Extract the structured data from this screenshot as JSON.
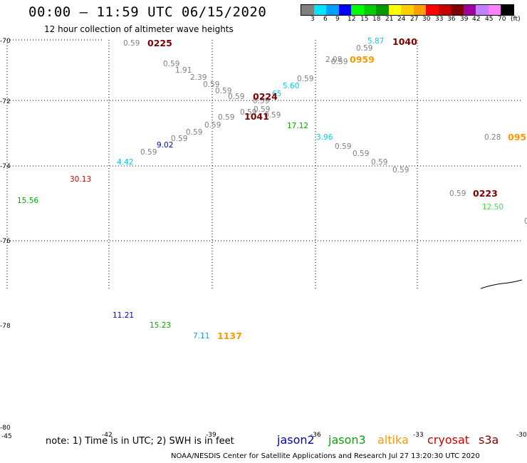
{
  "title": "00:00 – 11:59 UTC 06/15/2020",
  "subtitle": "12 hour collection of altimeter wave heights",
  "legend": {
    "unit": "(ft)",
    "colors": [
      "#808080",
      "#00e5ff",
      "#00a0ff",
      "#0000ff",
      "#00ff00",
      "#00cc00",
      "#009900",
      "#ffff00",
      "#ffd000",
      "#ffa000",
      "#ff0000",
      "#c80000",
      "#800000",
      "#a000a0",
      "#c080ff",
      "#ff80ff",
      "#000000"
    ],
    "labels": [
      "3",
      "6",
      "9",
      "12",
      "15",
      "18",
      "21",
      "24",
      "27",
      "30",
      "33",
      "36",
      "39",
      "42",
      "45",
      "70"
    ]
  },
  "latitudes": [
    "-70",
    "-72",
    "-74",
    "-76",
    "-78",
    "-80"
  ],
  "longitudes": [
    "-45",
    "-42",
    "-39",
    "-36",
    "-33",
    "-30"
  ],
  "values": [
    {
      "text": "0.59",
      "color": "#808080"
    },
    {
      "text": "0.59",
      "color": "#808080"
    },
    {
      "text": "1.91",
      "color": "#808080"
    },
    {
      "text": "2.39",
      "color": "#808080"
    },
    {
      "text": "0.59",
      "color": "#808080"
    },
    {
      "text": "0.59",
      "color": "#808080"
    },
    {
      "text": "0.59",
      "color": "#808080"
    },
    {
      "text": "0.59",
      "color": "#808080"
    },
    {
      "text": "0.59",
      "color": "#808080"
    },
    {
      "text": "0.59",
      "color": "#808080"
    },
    {
      "text": "0.59",
      "color": "#808080"
    },
    {
      "text": "0.59",
      "color": "#808080"
    },
    {
      "text": "0.59",
      "color": "#808080"
    },
    {
      "text": "0.59",
      "color": "#808080"
    },
    {
      "text": "0.59",
      "color": "#808080"
    },
    {
      "text": "0.59",
      "color": "#808080"
    },
    {
      "text": "0.59",
      "color": "#808080"
    },
    {
      "text": "0.59",
      "color": "#808080"
    },
    {
      "text": "0.59",
      "color": "#808080"
    },
    {
      "text": "0.59",
      "color": "#808080"
    },
    {
      "text": "0.59",
      "color": "#808080"
    },
    {
      "text": "0.59",
      "color": "#808080"
    },
    {
      "text": "0.59",
      "color": "#808080"
    },
    {
      "text": "2.08",
      "color": "#808080"
    },
    {
      "text": "0.28",
      "color": "#808080"
    },
    {
      "text": "0.59",
      "color": "#808080"
    },
    {
      "text": "5.87",
      "color": "#00ccee"
    },
    {
      "text": "5.60",
      "color": "#00ccee"
    },
    {
      "text": "3.96",
      "color": "#00ccee"
    },
    {
      "text": "4.42",
      "color": "#00ccee"
    },
    {
      "text": "7.11",
      "color": "#00a0ff"
    },
    {
      "text": "9.02",
      "color": "#0000cc"
    },
    {
      "text": "11.21",
      "color": "#0000cc"
    },
    {
      "text": "15.56",
      "color": "#00aa00"
    },
    {
      "text": "15.23",
      "color": "#00aa00"
    },
    {
      "text": "17.12",
      "color": "#00aa00"
    },
    {
      "text": "12.50",
      "color": "#44dd44"
    },
    {
      "text": "30.13",
      "color": "#cc0000"
    },
    {
      "text": "65",
      "color": "#00ccee"
    },
    {
      "text": "0",
      "color": "#808080"
    }
  ],
  "passes": [
    {
      "text": "0225",
      "color": "#800000"
    },
    {
      "text": "1040",
      "color": "#800000"
    },
    {
      "text": "0959",
      "color": "#ff9900"
    },
    {
      "text": "0224",
      "color": "#800000"
    },
    {
      "text": "1041",
      "color": "#800000"
    },
    {
      "text": "095",
      "color": "#ff9900"
    },
    {
      "text": "0223",
      "color": "#800000"
    },
    {
      "text": "1137",
      "color": "#ff9900"
    }
  ],
  "note": "note: 1) Time is in UTC; 2) SWH is in feet",
  "satellites": [
    {
      "name": "jason2",
      "color": "#0000cc"
    },
    {
      "name": "jason3",
      "color": "#00aa00"
    },
    {
      "name": "altika",
      "color": "#ff9900"
    },
    {
      "name": "cryosat",
      "color": "#cc0000"
    },
    {
      "name": "s3a",
      "color": "#800000"
    }
  ],
  "credit": "NOAA/NESDIS Center for Satellite Applications and Research   Jul 27 13:20:30 UTC 2020"
}
